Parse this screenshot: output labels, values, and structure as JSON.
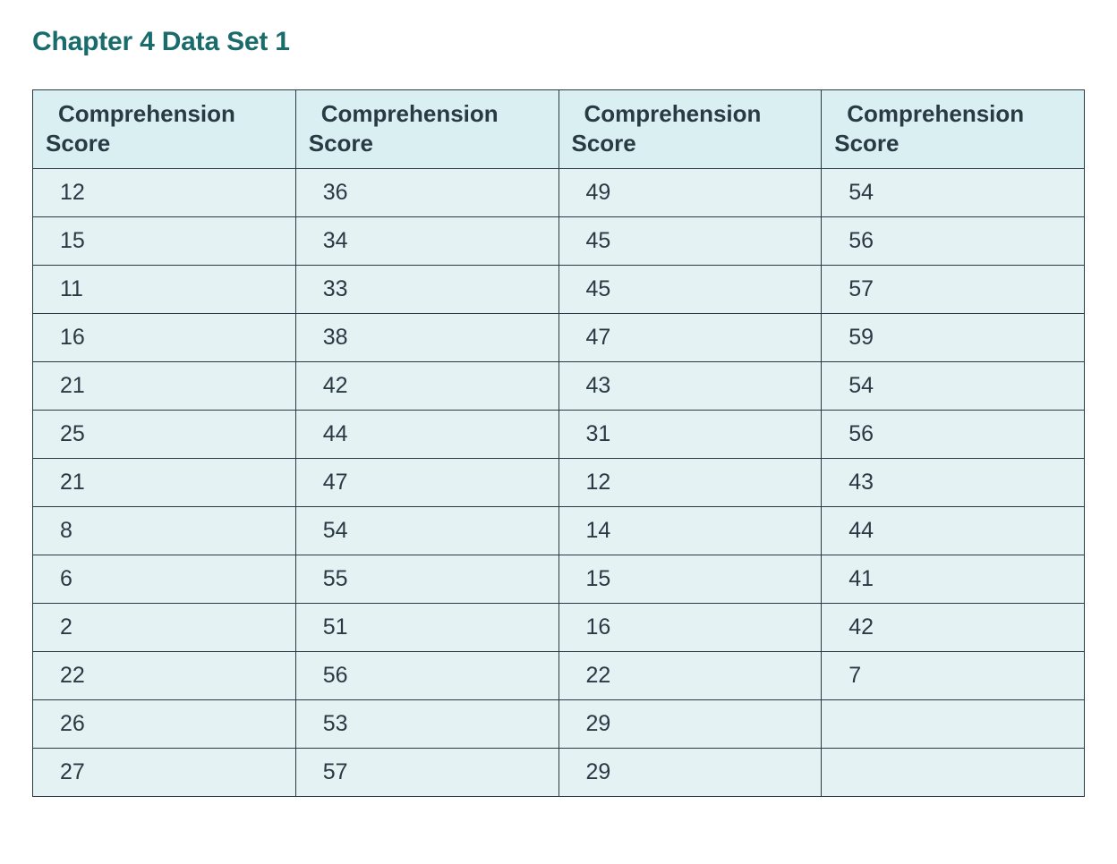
{
  "title": "Chapter 4 Data Set 1",
  "table": {
    "type": "table",
    "background_color": "#ffffff",
    "header_bg_color": "#daeff2",
    "cell_bg_color": "#e4f2f4",
    "border_color": "#2a3a44",
    "text_color": "#2a3a44",
    "title_color": "#1a6b6b",
    "title_fontsize": 30,
    "header_fontsize": 26,
    "cell_fontsize": 25,
    "column_count": 4,
    "row_count": 13,
    "column_width_percent": 25,
    "columns": [
      {
        "header_line1": "Comprehension",
        "header_line2": "Score"
      },
      {
        "header_line1": "Comprehension",
        "header_line2": "Score"
      },
      {
        "header_line1": "Comprehension",
        "header_line2": "Score"
      },
      {
        "header_line1": "Comprehension",
        "header_line2": "Score"
      }
    ],
    "rows": [
      [
        "12",
        "36",
        "49",
        "54"
      ],
      [
        "15",
        "34",
        "45",
        "56"
      ],
      [
        "11",
        "33",
        "45",
        "57"
      ],
      [
        "16",
        "38",
        "47",
        "59"
      ],
      [
        "21",
        "42",
        "43",
        "54"
      ],
      [
        "25",
        "44",
        "31",
        "56"
      ],
      [
        "21",
        "47",
        "12",
        "43"
      ],
      [
        "8",
        "54",
        "14",
        "44"
      ],
      [
        "6",
        "55",
        "15",
        "41"
      ],
      [
        "2",
        "51",
        "16",
        "42"
      ],
      [
        "22",
        "56",
        "22",
        "7"
      ],
      [
        "26",
        "53",
        "29",
        ""
      ],
      [
        "27",
        "57",
        "29",
        ""
      ]
    ]
  }
}
